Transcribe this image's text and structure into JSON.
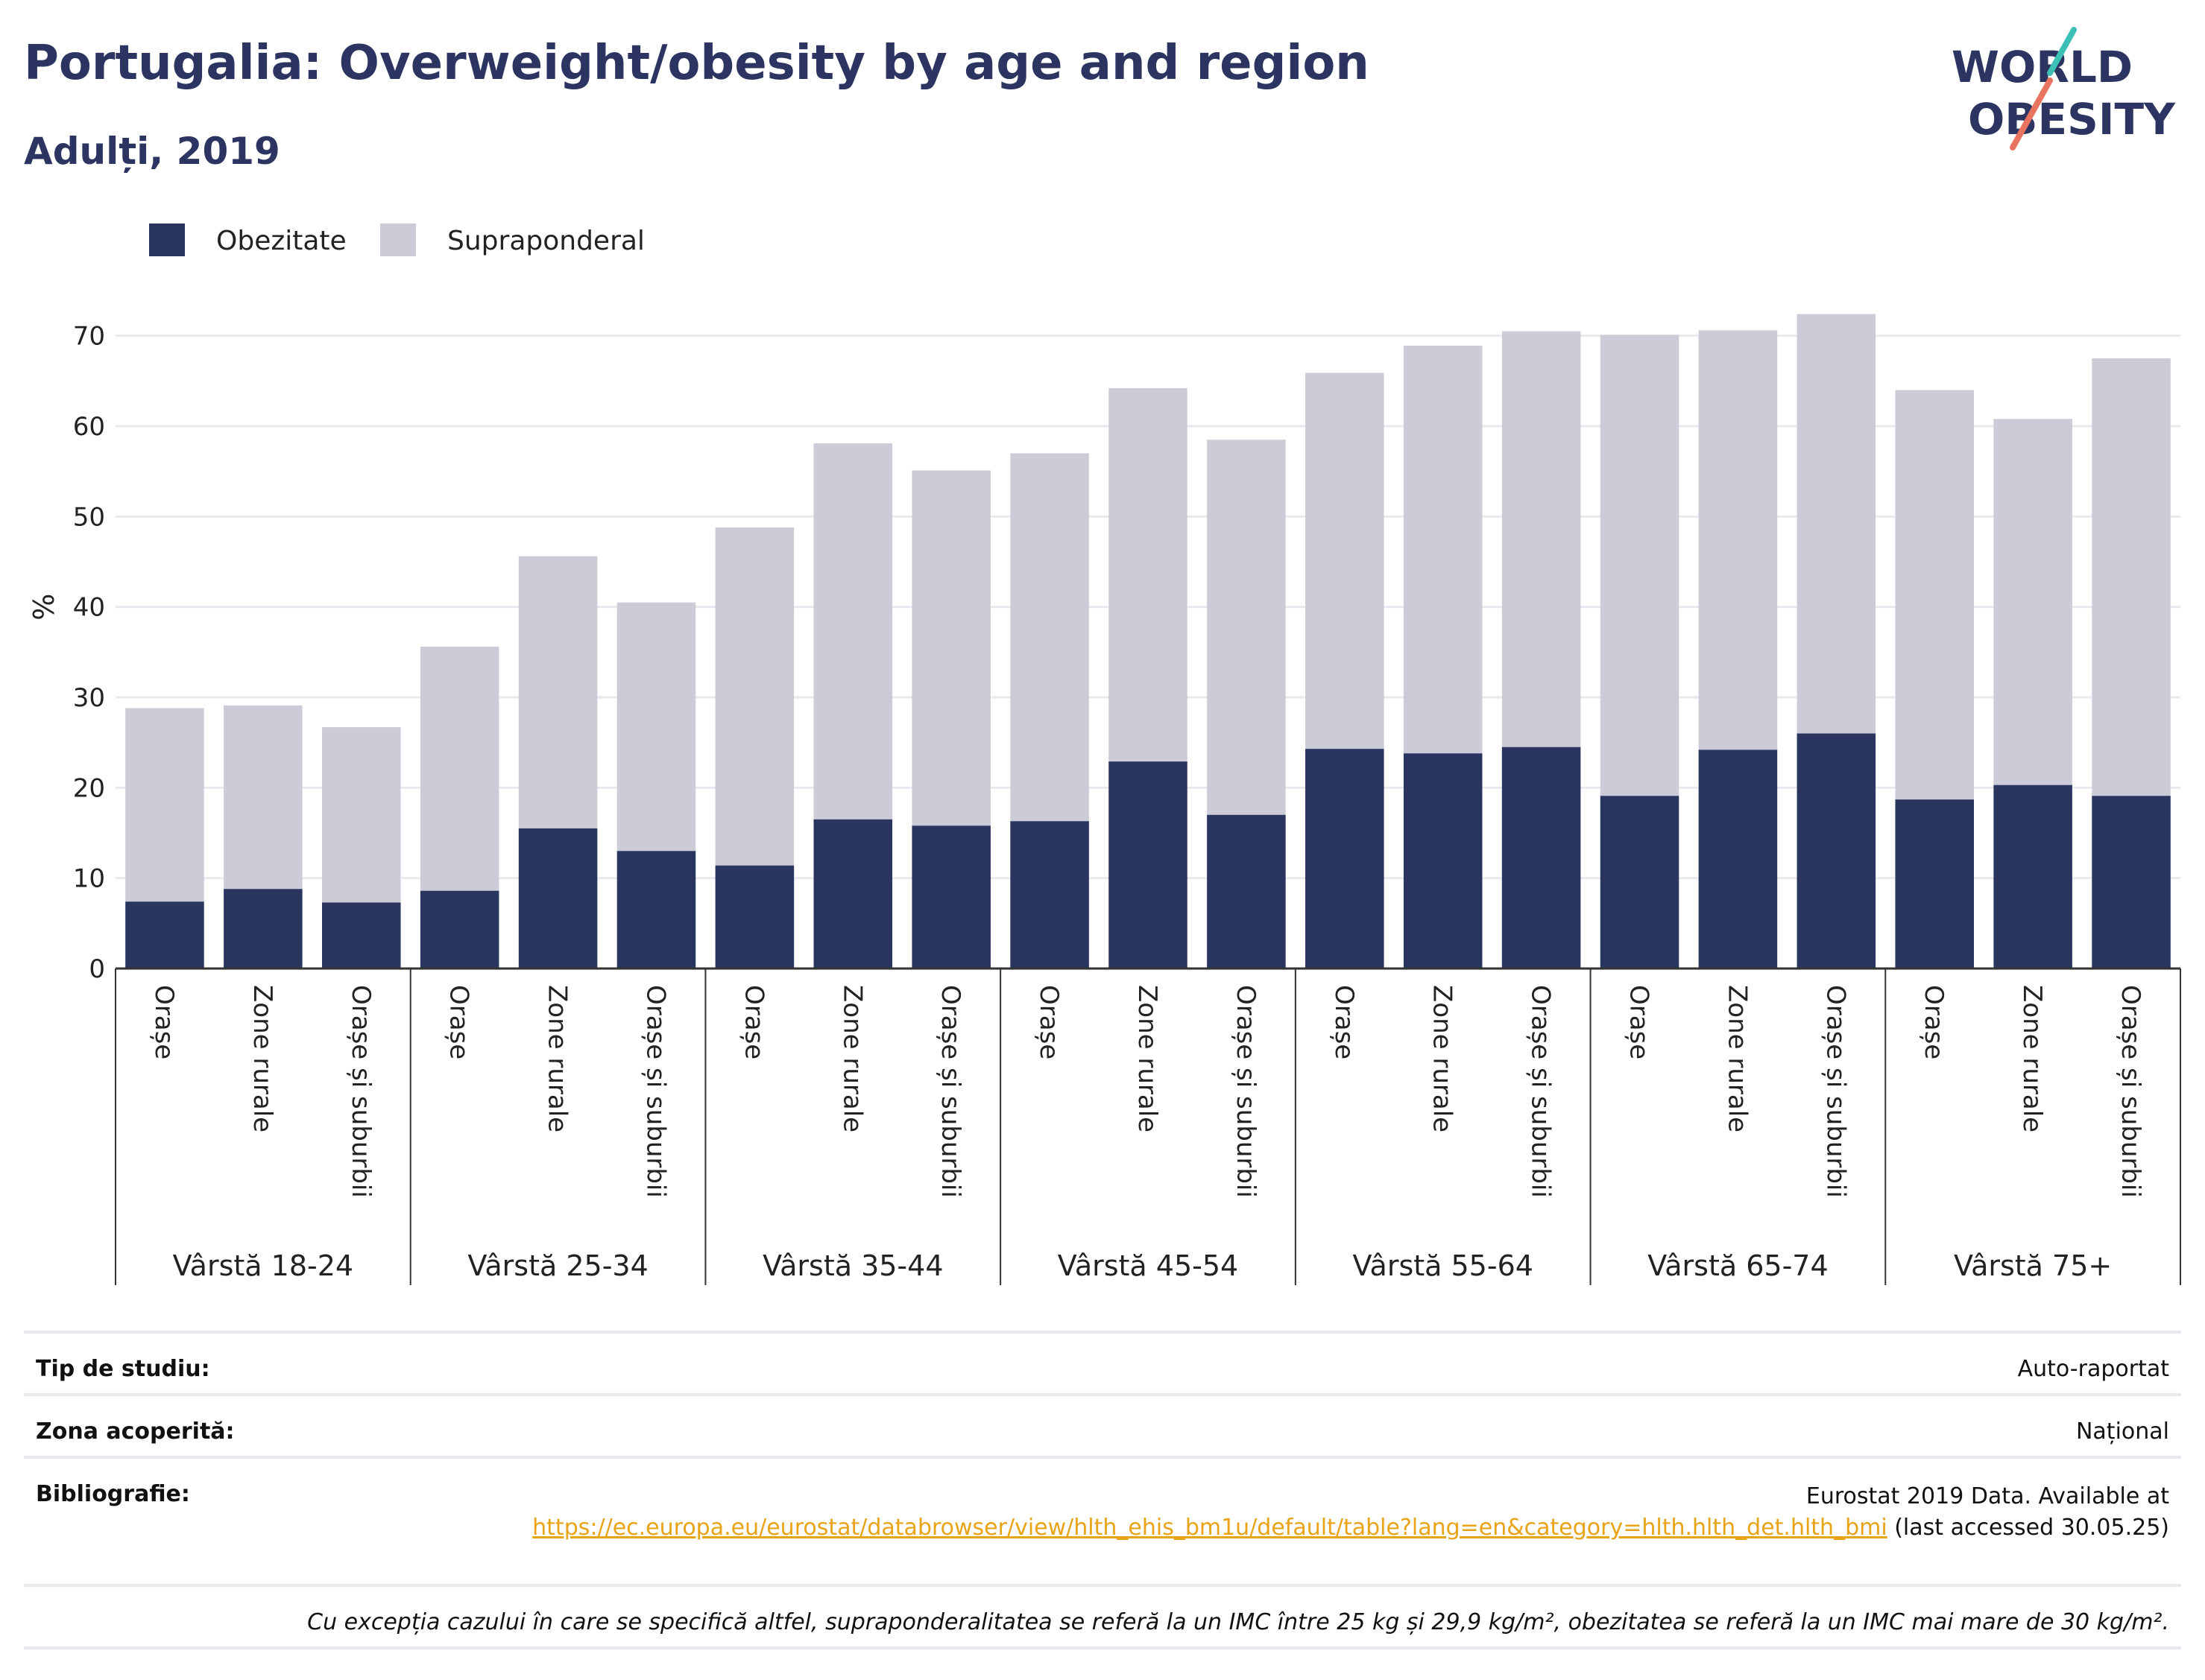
{
  "title": "Portugalia: Overweight/obesity by age and region",
  "subtitle": "Adulți, 2019",
  "logo": {
    "line1": "WORLD",
    "line2": "OBESITY",
    "text_color": "#2c3561",
    "accent_teal": "#3cbfb4",
    "accent_coral": "#e8735f"
  },
  "colors": {
    "obesity": "#2a3560",
    "overweight": "#cbccd8",
    "text_primary": "#2c3561",
    "link": "#e8a317"
  },
  "chart_data": {
    "type": "bar",
    "stacked": true,
    "ylabel": "%",
    "ylim": [
      0,
      75
    ],
    "yticks": [
      0,
      10,
      20,
      30,
      40,
      50,
      60,
      70
    ],
    "grid": true,
    "legend_position": "top-left",
    "groups": [
      "Vârstă 18-24",
      "Vârstă 25-34",
      "Vârstă 35-44",
      "Vârstă 45-54",
      "Vârstă 55-64",
      "Vârstă 65-74",
      "Vârstă 75+"
    ],
    "subcategories": [
      "Orașe",
      "Zone rurale",
      "Orașe și suburbii"
    ],
    "series": [
      {
        "name": "Obezitate",
        "color": "#2a3560",
        "values": [
          7.4,
          8.8,
          7.3,
          8.6,
          15.5,
          13.0,
          11.4,
          16.5,
          15.8,
          16.3,
          22.9,
          17.0,
          24.3,
          23.8,
          24.5,
          19.1,
          24.2,
          26.0,
          18.7,
          20.3,
          19.1
        ]
      },
      {
        "name": "Supraponderal",
        "color": "#cbccd8",
        "values": [
          21.4,
          20.3,
          19.4,
          27.0,
          30.1,
          27.5,
          37.4,
          41.6,
          39.3,
          40.7,
          41.3,
          41.5,
          41.6,
          45.1,
          46.0,
          51.0,
          46.4,
          46.4,
          45.3,
          40.5,
          48.4
        ]
      }
    ]
  },
  "footer": {
    "study_label": "Tip de studiu:",
    "study_value": "Auto-raportat",
    "coverage_label": "Zona acoperită:",
    "coverage_value": "Național",
    "biblio_label": "Bibliografie:",
    "biblio_prefix": "Eurostat 2019 Data. Available at",
    "biblio_link": "https://ec.europa.eu/eurostat/databrowser/view/hlth_ehis_bm1u/default/table?lang=en&category=hlth.hlth_det.hlth_bmi",
    "biblio_suffix": " (last accessed 30.05.25)",
    "note": "Cu excepția cazului în care se specifică altfel, supraponderalitatea se referă la un IMC între 25 kg și 29,9 kg/m², obezitatea se referă la un IMC mai mare de 30 kg/m²."
  }
}
